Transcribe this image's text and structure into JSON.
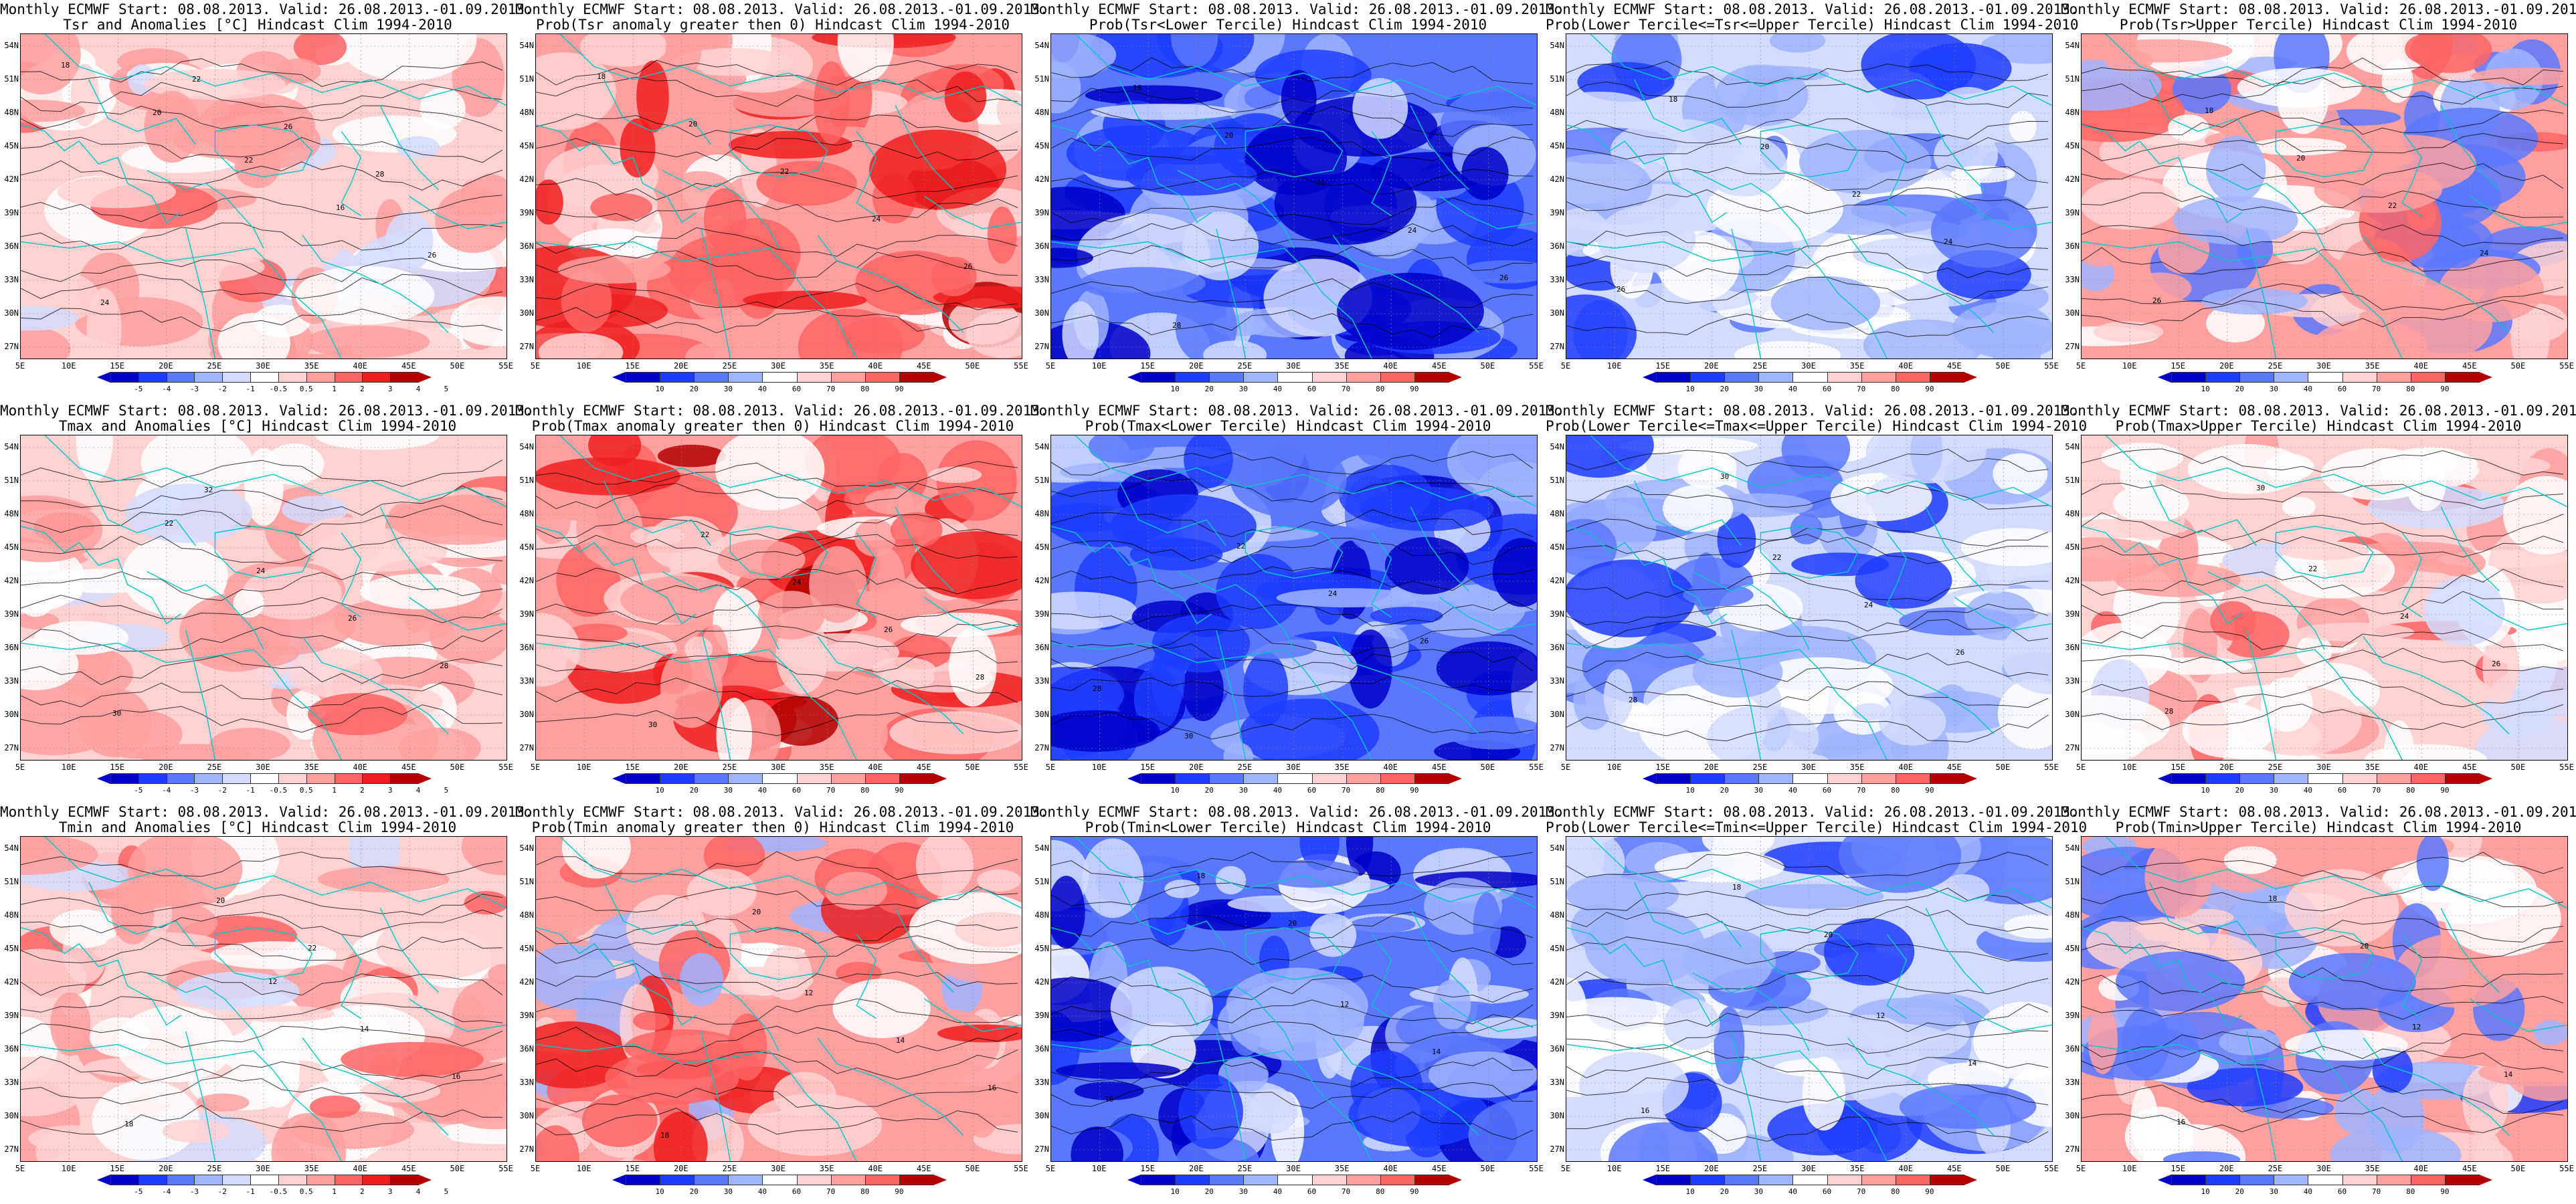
{
  "panels": [
    {
      "id": "tsr-anom",
      "title1": "Monthly ECMWF Start: 08.08.2013. Valid: 26.08.2013.-01.09.2013.",
      "title2": "Tsr and Anomalies [°C] Hindcast Clim 1994-2010",
      "scheme": "red",
      "cbar_ticks": [
        "-5",
        "-4",
        "-3",
        "-2",
        "-1",
        "-0.5",
        "0.5",
        "1",
        "2",
        "3",
        "4",
        "5"
      ],
      "contour_labels": [
        "18",
        "20",
        "22",
        "16",
        "26",
        "24",
        "22",
        "26",
        "28"
      ]
    },
    {
      "id": "tsr-prob-gt0",
      "title1": "Monthly ECMWF Start: 08.08.2013. Valid: 26.08.2013.-01.09.2013.",
      "title2": "Prob(Tsr anomaly greater then 0) Hindcast Clim 1994-2010",
      "scheme": "red_strong",
      "cbar_ticks": [
        "10",
        "20",
        "30",
        "40",
        "60",
        "70",
        "80",
        "90"
      ],
      "contour_labels": [
        "18",
        "20",
        "22",
        "24",
        "26"
      ]
    },
    {
      "id": "tsr-prob-lower",
      "title1": "Monthly ECMWF Start: 08.08.2013. Valid: 26.08.2013.-01.09.2013.",
      "title2": "Prob(Tsr<Lower Tercile) Hindcast Clim 1994-2010",
      "scheme": "blue_strong",
      "cbar_ticks": [
        "10",
        "20",
        "30",
        "40",
        "60",
        "70",
        "80",
        "90"
      ],
      "contour_labels": [
        "18",
        "20",
        "22",
        "24",
        "26",
        "28"
      ]
    },
    {
      "id": "tsr-prob-middle",
      "title1": "Monthly ECMWF Start: 08.08.2013. Valid: 26.08.2013.-01.09.2013.",
      "title2": "Prob(Lower Tercile<=Tsr<=Upper Tercile) Hindcast Clim 1994-2010",
      "scheme": "blue_mixed",
      "cbar_ticks": [
        "10",
        "20",
        "30",
        "40",
        "60",
        "70",
        "80",
        "90"
      ],
      "contour_labels": [
        "18",
        "20",
        "22",
        "24",
        "26"
      ]
    },
    {
      "id": "tsr-prob-upper",
      "title1": "Monthly ECMWF Start: 08.08.2013. Valid: 26.08.2013.-01.09.2013.",
      "title2": "Prob(Tsr>Upper Tercile) Hindcast Clim 1994-2010",
      "scheme": "mixed_red_blue",
      "cbar_ticks": [
        "10",
        "20",
        "30",
        "40",
        "60",
        "70",
        "80",
        "90"
      ],
      "contour_labels": [
        "18",
        "20",
        "22",
        "24",
        "26"
      ]
    },
    {
      "id": "tmax-anom",
      "title1": "Monthly ECMWF Start: 08.08.2013. Valid: 26.08.2013.-01.09.2013.",
      "title2": "Tmax and Anomalies [°C] Hindcast Clim 1994-2010",
      "scheme": "red",
      "cbar_ticks": [
        "-5",
        "-4",
        "-3",
        "-2",
        "-1",
        "-0.5",
        "0.5",
        "1",
        "2",
        "3",
        "4",
        "5"
      ],
      "contour_labels": [
        "22",
        "24",
        "26",
        "28",
        "30",
        "32"
      ]
    },
    {
      "id": "tmax-prob-gt0",
      "title1": "Monthly ECMWF Start: 08.08.2013. Valid: 26.08.2013.-01.09.2013.",
      "title2": "Prob(Tmax anomaly greater then 0) Hindcast Clim 1994-2010",
      "scheme": "red_strong",
      "cbar_ticks": [
        "10",
        "20",
        "30",
        "40",
        "60",
        "70",
        "80",
        "90"
      ],
      "contour_labels": [
        "22",
        "24",
        "26",
        "28",
        "30"
      ]
    },
    {
      "id": "tmax-prob-lower",
      "title1": "Monthly ECMWF Start: 08.08.2013. Valid: 26.08.2013.-01.09.2013.",
      "title2": "Prob(Tmax<Lower Tercile) Hindcast Clim 1994-2010",
      "scheme": "blue_strong",
      "cbar_ticks": [
        "10",
        "20",
        "30",
        "40",
        "60",
        "70",
        "80",
        "90"
      ],
      "contour_labels": [
        "22",
        "24",
        "26",
        "28",
        "30"
      ]
    },
    {
      "id": "tmax-prob-middle",
      "title1": "Monthly ECMWF Start: 08.08.2013. Valid: 26.08.2013.-01.09.2013.",
      "title2": "Prob(Lower Tercile<=Tmax<=Upper Tercile) Hindcast Clim 1994-2010",
      "scheme": "blue_mixed",
      "cbar_ticks": [
        "10",
        "20",
        "30",
        "40",
        "60",
        "70",
        "80",
        "90"
      ],
      "contour_labels": [
        "22",
        "24",
        "26",
        "28",
        "30"
      ]
    },
    {
      "id": "tmax-prob-upper",
      "title1": "Monthly ECMWF Start: 08.08.2013. Valid: 26.08.2013.-01.09.2013.",
      "title2": "Prob(Tmax>Upper Tercile) Hindcast Clim 1994-2010",
      "scheme": "light_red",
      "cbar_ticks": [
        "10",
        "20",
        "30",
        "40",
        "60",
        "70",
        "80",
        "90"
      ],
      "contour_labels": [
        "22",
        "24",
        "26",
        "28",
        "30"
      ]
    },
    {
      "id": "tmin-anom",
      "title1": "Monthly ECMWF Start: 08.08.2013. Valid: 26.08.2013.-01.09.2013.",
      "title2": "Tmin and Anomalies [°C] Hindcast Clim 1994-2010",
      "scheme": "red",
      "cbar_ticks": [
        "-5",
        "-4",
        "-3",
        "-2",
        "-1",
        "-0.5",
        "0.5",
        "1",
        "2",
        "3",
        "4",
        "5"
      ],
      "contour_labels": [
        "12",
        "14",
        "16",
        "18",
        "20",
        "22"
      ]
    },
    {
      "id": "tmin-prob-gt0",
      "title1": "Monthly ECMWF Start: 08.08.2013. Valid: 26.08.2013.-01.09.2013.",
      "title2": "Prob(Tmin anomaly greater then 0) Hindcast Clim 1994-2010",
      "scheme": "red_blue_south",
      "cbar_ticks": [
        "10",
        "20",
        "30",
        "40",
        "60",
        "70",
        "80",
        "90"
      ],
      "contour_labels": [
        "12",
        "14",
        "16",
        "18",
        "20"
      ]
    },
    {
      "id": "tmin-prob-lower",
      "title1": "Monthly ECMWF Start: 08.08.2013. Valid: 26.08.2013.-01.09.2013.",
      "title2": "Prob(Tmin<Lower Tercile) Hindcast Clim 1994-2010",
      "scheme": "blue_strong_redsouth",
      "cbar_ticks": [
        "10",
        "20",
        "30",
        "40",
        "60",
        "70",
        "80",
        "90"
      ],
      "contour_labels": [
        "12",
        "14",
        "16",
        "18",
        "20"
      ]
    },
    {
      "id": "tmin-prob-middle",
      "title1": "Monthly ECMWF Start: 08.08.2013. Valid: 26.08.2013.-01.09.2013.",
      "title2": "Prob(Lower Tercile<=Tmin<=Upper Tercile) Hindcast Clim 1994-2010",
      "scheme": "blue_mixed",
      "cbar_ticks": [
        "10",
        "20",
        "30",
        "40",
        "60",
        "70",
        "80",
        "90"
      ],
      "contour_labels": [
        "12",
        "14",
        "16",
        "18",
        "20"
      ]
    },
    {
      "id": "tmin-prob-upper",
      "title1": "Monthly ECMWF Start: 08.08.2013. Valid: 26.08.2013.-01.09.2013.",
      "title2": "Prob(Tmin>Upper Tercile) Hindcast Clim 1994-2010",
      "scheme": "red_north_blue_south",
      "cbar_ticks": [
        "10",
        "20",
        "30",
        "40",
        "60",
        "70",
        "80",
        "90"
      ],
      "contour_labels": [
        "12",
        "14",
        "16",
        "18",
        "20"
      ]
    }
  ],
  "lat_labels": [
    "54N",
    "51N",
    "48N",
    "45N",
    "42N",
    "39N",
    "36N",
    "33N",
    "30N",
    "27N"
  ],
  "lon_labels": [
    "5E",
    "10E",
    "15E",
    "20E",
    "25E",
    "30E",
    "35E",
    "40E",
    "45E",
    "50E",
    "55E"
  ],
  "colors": {
    "dark_blue": "#0000c8",
    "blue": "#1e3cff",
    "mid_blue": "#5a78ff",
    "light_blue": "#a0b4ff",
    "pale_blue": "#d2dcff",
    "pale_red": "#ffd2d2",
    "light_red": "#ffa0a0",
    "mid_red": "#ff6464",
    "red": "#f01e1e",
    "dark_red": "#b40000",
    "coast": "#00c8c8",
    "contour": "#000000"
  }
}
